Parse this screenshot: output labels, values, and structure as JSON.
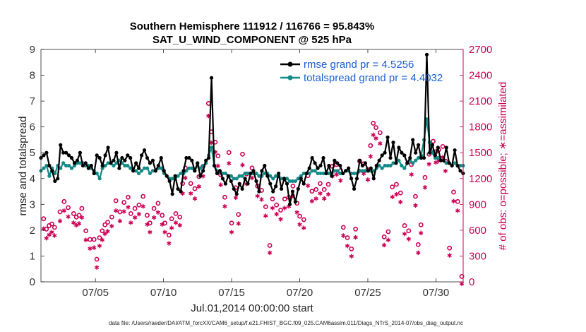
{
  "chart_data": {
    "type": "line",
    "title": [
      "Southern Hemisphere 111912 / 116766 = 95.843%",
      "SAT_U_WIND_COMPONENT @ 525 hPa"
    ],
    "xlabel": "Jul.01,2014 00:00:00 start",
    "ylabel": "rmse and totalspread",
    "ylabel_right": "# of obs: o=possible; ∗=assimilated",
    "xlim": [
      1,
      32
    ],
    "ylim": [
      0,
      9
    ],
    "ylim_right": [
      0,
      2700
    ],
    "x_ticks": [
      5,
      10,
      15,
      20,
      25,
      30
    ],
    "x_tick_labels": [
      "07/05",
      "07/10",
      "07/15",
      "07/20",
      "07/25",
      "07/30"
    ],
    "y_ticks": [
      "0",
      "1",
      "2",
      "3",
      "4",
      "5",
      "6",
      "7",
      "8",
      "9"
    ],
    "y_ticks_right": [
      "0",
      "300",
      "600",
      "900",
      "1200",
      "1500",
      "1800",
      "2100",
      "2400",
      "2700"
    ],
    "footer": "data file: /Users/raeder/DAI/ATM_forcXX/CAM6_setup/f.e21.FHIST_BGC.f09_025.CAM6assim.011/Diags_NTrS_2014-07/obs_diag_output.nc",
    "colors": {
      "rmse": "#000000",
      "spread": "#138a87",
      "obs": "#cc0055",
      "legend_text": "#1a5fd6",
      "right_axis": "#cc0055"
    },
    "series": [
      {
        "name": "rmse grand pr = 4.5256",
        "values": [
          4.8,
          4.9,
          5.0,
          4.5,
          4.3,
          3.9,
          4.0,
          5.3,
          5.0,
          5.0,
          4.9,
          4.8,
          4.6,
          4.7,
          5.0,
          4.5,
          4.6,
          4.4,
          4.5,
          4.2,
          4.9,
          4.8,
          4.5,
          4.9,
          5.2,
          4.6,
          4.7,
          5.0,
          4.4,
          4.8,
          4.7,
          4.9,
          4.8,
          4.3,
          4.6,
          4.4,
          4.9,
          5.1,
          4.8,
          4.6,
          4.7,
          4.3,
          4.5,
          4.8,
          4.3,
          4.1,
          3.9,
          3.4,
          4.1,
          3.6,
          3.5,
          4.3,
          4.8,
          4.8,
          4.7,
          4.3,
          4.6,
          4.1,
          4.3,
          4.7,
          4.8,
          7.9,
          4.5,
          4.2,
          4.3,
          4.0,
          3.8,
          4.1,
          3.9,
          3.6,
          3.4,
          3.8,
          3.6,
          4.0,
          3.8,
          4.2,
          4.3,
          3.9,
          3.5,
          4.3,
          4.5,
          4.1,
          3.8,
          3.5,
          3.7,
          4.2,
          3.6,
          4.0,
          3.8,
          3.0,
          3.5,
          3.1,
          3.6,
          4.0,
          3.8,
          4.2,
          4.4,
          4.8,
          4.6,
          4.4,
          4.5,
          4.8,
          4.2,
          4.5,
          4.1,
          4.7,
          4.6,
          4.5,
          4.2,
          4.3,
          4.4,
          4.0,
          3.6,
          4.0,
          4.7,
          4.5,
          4.6,
          4.3,
          4.4,
          4.0,
          4.5,
          4.7,
          4.9,
          5.0,
          5.6,
          4.8,
          5.4,
          4.6,
          5.2,
          5.0,
          4.9,
          4.6,
          4.8,
          5.5,
          5.0,
          5.3,
          4.8,
          4.8,
          8.8,
          5.0,
          5.3,
          4.9,
          5.2,
          4.7,
          4.7,
          5.2,
          4.6,
          4.5,
          5.1,
          4.5,
          4.3,
          4.2
        ]
      },
      {
        "name": "totalspread grand pr = 4.4032",
        "values": [
          4.3,
          4.4,
          4.5,
          4.1,
          4.4,
          4.2,
          4.5,
          4.4,
          4.6,
          4.5,
          4.5,
          4.4,
          4.5,
          4.6,
          4.6,
          4.6,
          4.5,
          4.5,
          4.4,
          4.3,
          4.2,
          4.0,
          4.4,
          4.5,
          4.6,
          4.6,
          4.5,
          4.6,
          4.7,
          4.6,
          4.5,
          4.5,
          4.4,
          4.3,
          4.3,
          4.2,
          4.3,
          4.4,
          4.4,
          4.2,
          4.3,
          4.3,
          4.4,
          4.4,
          4.2,
          4.1,
          4.0,
          4.0,
          4.0,
          4.1,
          4.2,
          4.2,
          4.3,
          4.4,
          4.4,
          4.3,
          4.5,
          4.4,
          4.5,
          4.6,
          4.9,
          5.2,
          4.5,
          4.3,
          4.3,
          4.2,
          4.2,
          4.1,
          4.1,
          4.0,
          4.0,
          4.1,
          4.1,
          4.2,
          4.2,
          4.2,
          4.2,
          4.2,
          4.1,
          4.1,
          4.2,
          4.2,
          4.1,
          4.0,
          4.1,
          4.1,
          4.0,
          4.0,
          4.0,
          3.9,
          3.9,
          3.9,
          4.0,
          4.1,
          4.2,
          4.2,
          4.2,
          4.3,
          4.3,
          4.2,
          4.2,
          4.2,
          4.2,
          4.2,
          4.2,
          4.3,
          4.3,
          4.2,
          4.2,
          4.3,
          4.3,
          4.2,
          4.2,
          4.2,
          4.3,
          4.3,
          4.3,
          4.3,
          4.3,
          4.3,
          4.4,
          4.5,
          4.4,
          4.5,
          4.5,
          4.5,
          4.6,
          4.6,
          4.7,
          4.5,
          4.4,
          4.6,
          4.7,
          4.6,
          4.7,
          4.8,
          4.9,
          5.5,
          6.3,
          5.4,
          5.0,
          4.8,
          4.8,
          4.7,
          4.7,
          4.6,
          4.6,
          4.5,
          4.6,
          4.5,
          4.5,
          4.5
        ]
      }
    ],
    "obs_possible": [
      [
        1.2,
        700
      ],
      [
        1.4,
        580
      ],
      [
        1.6,
        620
      ],
      [
        1.8,
        640
      ],
      [
        2.0,
        600
      ],
      [
        2.4,
        780
      ],
      [
        2.7,
        900
      ],
      [
        3.0,
        830
      ],
      [
        3.4,
        760
      ],
      [
        3.6,
        720
      ],
      [
        3.8,
        740
      ],
      [
        4.0,
        820
      ],
      [
        4.3,
        560
      ],
      [
        4.6,
        460
      ],
      [
        4.9,
        460
      ],
      [
        5.1,
        230
      ],
      [
        5.3,
        480
      ],
      [
        5.5,
        560
      ],
      [
        5.7,
        630
      ],
      [
        5.9,
        660
      ],
      [
        6.2,
        720
      ],
      [
        6.5,
        910
      ],
      [
        6.8,
        780
      ],
      [
        7.1,
        890
      ],
      [
        7.4,
        950
      ],
      [
        7.6,
        760
      ],
      [
        7.9,
        820
      ],
      [
        8.2,
        860
      ],
      [
        8.5,
        960
      ],
      [
        8.8,
        740
      ],
      [
        9.0,
        650
      ],
      [
        9.3,
        820
      ],
      [
        9.6,
        880
      ],
      [
        9.9,
        740
      ],
      [
        10.1,
        650
      ],
      [
        10.4,
        510
      ],
      [
        10.6,
        700
      ],
      [
        10.9,
        760
      ],
      [
        11.2,
        720
      ],
      [
        11.4,
        1110
      ],
      [
        11.6,
        1290
      ],
      [
        12.0,
        1110
      ],
      [
        12.3,
        1050
      ],
      [
        12.6,
        1190
      ],
      [
        12.9,
        1310
      ],
      [
        13.3,
        2040
      ],
      [
        13.5,
        1710
      ],
      [
        13.8,
        1590
      ],
      [
        14.0,
        1430
      ],
      [
        14.2,
        1210
      ],
      [
        14.5,
        950
      ],
      [
        14.8,
        1470
      ],
      [
        15.0,
        650
      ],
      [
        15.3,
        1060
      ],
      [
        15.5,
        750
      ],
      [
        15.8,
        1450
      ],
      [
        16.1,
        1220
      ],
      [
        16.5,
        1290
      ],
      [
        16.9,
        1080
      ],
      [
        17.2,
        1030
      ],
      [
        17.5,
        840
      ],
      [
        17.8,
        390
      ],
      [
        18.0,
        930
      ],
      [
        18.3,
        860
      ],
      [
        18.6,
        800
      ],
      [
        18.9,
        930
      ],
      [
        19.2,
        950
      ],
      [
        19.5,
        1080
      ],
      [
        19.8,
        880
      ],
      [
        20.0,
        730
      ],
      [
        20.3,
        690
      ],
      [
        20.6,
        1200
      ],
      [
        20.9,
        1020
      ],
      [
        21.2,
        1040
      ],
      [
        21.5,
        1110
      ],
      [
        21.8,
        1040
      ],
      [
        22.1,
        1100
      ],
      [
        22.4,
        1310
      ],
      [
        22.7,
        1330
      ],
      [
        23.0,
        1260
      ],
      [
        23.2,
        600
      ],
      [
        23.5,
        480
      ],
      [
        23.8,
        350
      ],
      [
        24.1,
        580
      ],
      [
        24.4,
        1370
      ],
      [
        24.7,
        1340
      ],
      [
        25.0,
        1270
      ],
      [
        25.2,
        1550
      ],
      [
        25.4,
        1810
      ],
      [
        25.6,
        1760
      ],
      [
        25.9,
        1700
      ],
      [
        26.2,
        490
      ],
      [
        26.5,
        550
      ],
      [
        26.8,
        1070
      ],
      [
        27.1,
        1100
      ],
      [
        27.4,
        1000
      ],
      [
        27.7,
        620
      ],
      [
        28.0,
        560
      ],
      [
        28.2,
        1330
      ],
      [
        28.5,
        960
      ],
      [
        28.7,
        400
      ],
      [
        28.9,
        630
      ],
      [
        29.2,
        1180
      ],
      [
        29.5,
        1450
      ],
      [
        29.8,
        1600
      ],
      [
        30.0,
        1480
      ],
      [
        30.2,
        1500
      ],
      [
        30.5,
        1540
      ],
      [
        30.7,
        1370
      ],
      [
        31.0,
        360
      ],
      [
        31.3,
        1010
      ],
      [
        31.6,
        900
      ],
      [
        31.9,
        30
      ]
    ],
    "obs_assimilated": [
      [
        1.2,
        650
      ],
      [
        1.4,
        540
      ],
      [
        1.6,
        580
      ],
      [
        1.8,
        610
      ],
      [
        2.0,
        570
      ],
      [
        2.4,
        740
      ],
      [
        2.7,
        860
      ],
      [
        3.0,
        790
      ],
      [
        3.4,
        720
      ],
      [
        3.6,
        690
      ],
      [
        3.8,
        710
      ],
      [
        4.0,
        780
      ],
      [
        4.3,
        520
      ],
      [
        4.6,
        420
      ],
      [
        4.9,
        430
      ],
      [
        5.1,
        200
      ],
      [
        5.3,
        450
      ],
      [
        5.5,
        520
      ],
      [
        5.7,
        590
      ],
      [
        5.9,
        620
      ],
      [
        6.2,
        680
      ],
      [
        6.5,
        860
      ],
      [
        6.8,
        740
      ],
      [
        7.1,
        850
      ],
      [
        7.4,
        900
      ],
      [
        7.6,
        720
      ],
      [
        7.9,
        780
      ],
      [
        8.2,
        820
      ],
      [
        8.5,
        910
      ],
      [
        8.8,
        700
      ],
      [
        9.0,
        610
      ],
      [
        9.3,
        780
      ],
      [
        9.6,
        840
      ],
      [
        9.9,
        700
      ],
      [
        10.1,
        610
      ],
      [
        10.4,
        480
      ],
      [
        10.6,
        660
      ],
      [
        10.9,
        720
      ],
      [
        11.2,
        690
      ],
      [
        11.4,
        1060
      ],
      [
        11.6,
        1240
      ],
      [
        12.0,
        1060
      ],
      [
        12.3,
        1000
      ],
      [
        12.6,
        1140
      ],
      [
        12.9,
        1260
      ],
      [
        13.3,
        1960
      ],
      [
        13.5,
        1650
      ],
      [
        13.8,
        1540
      ],
      [
        14.0,
        1380
      ],
      [
        14.2,
        1160
      ],
      [
        14.5,
        910
      ],
      [
        14.8,
        1410
      ],
      [
        15.0,
        610
      ],
      [
        15.3,
        1010
      ],
      [
        15.5,
        710
      ],
      [
        15.8,
        1390
      ],
      [
        16.1,
        1170
      ],
      [
        16.5,
        1240
      ],
      [
        16.9,
        1030
      ],
      [
        17.2,
        990
      ],
      [
        17.5,
        800
      ],
      [
        17.8,
        370
      ],
      [
        18.0,
        890
      ],
      [
        18.3,
        820
      ],
      [
        18.6,
        760
      ],
      [
        18.9,
        890
      ],
      [
        19.2,
        910
      ],
      [
        19.5,
        1030
      ],
      [
        19.8,
        840
      ],
      [
        20.0,
        700
      ],
      [
        20.3,
        660
      ],
      [
        20.6,
        1150
      ],
      [
        20.9,
        970
      ],
      [
        21.2,
        1000
      ],
      [
        21.5,
        1060
      ],
      [
        21.8,
        1000
      ],
      [
        22.1,
        1050
      ],
      [
        22.4,
        1260
      ],
      [
        22.7,
        1280
      ],
      [
        23.0,
        1210
      ],
      [
        23.2,
        570
      ],
      [
        23.5,
        450
      ],
      [
        23.8,
        330
      ],
      [
        24.1,
        550
      ],
      [
        24.4,
        1320
      ],
      [
        24.7,
        1290
      ],
      [
        25.0,
        1220
      ],
      [
        25.2,
        1490
      ],
      [
        25.4,
        1740
      ],
      [
        25.6,
        1700
      ],
      [
        25.9,
        1640
      ],
      [
        26.2,
        460
      ],
      [
        26.5,
        520
      ],
      [
        26.8,
        1020
      ],
      [
        27.1,
        1050
      ],
      [
        27.4,
        960
      ],
      [
        27.7,
        590
      ],
      [
        28.0,
        530
      ],
      [
        28.2,
        1280
      ],
      [
        28.5,
        920
      ],
      [
        28.7,
        370
      ],
      [
        28.9,
        600
      ],
      [
        29.2,
        1130
      ],
      [
        29.5,
        1400
      ],
      [
        29.8,
        1540
      ],
      [
        30.0,
        1420
      ],
      [
        30.2,
        1440
      ],
      [
        30.5,
        1480
      ],
      [
        30.7,
        1320
      ],
      [
        31.0,
        340
      ],
      [
        31.3,
        970
      ],
      [
        31.6,
        860
      ],
      [
        31.9,
        10
      ]
    ]
  }
}
